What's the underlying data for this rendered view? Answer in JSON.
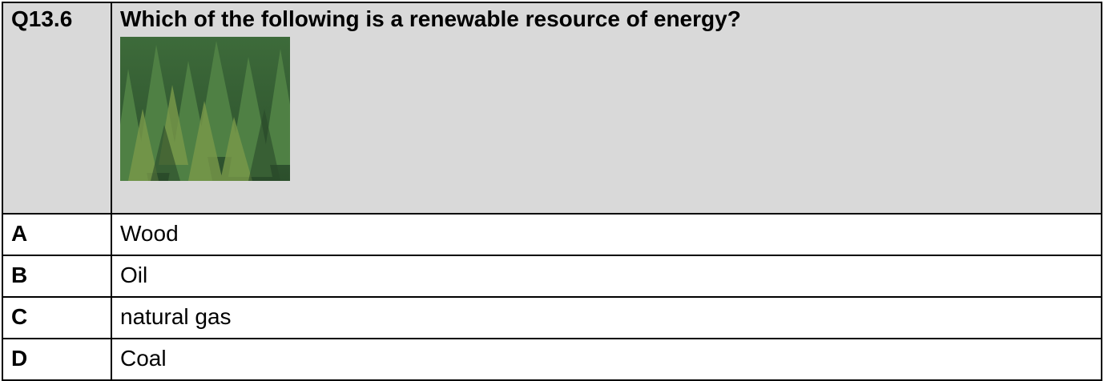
{
  "question": {
    "number": "Q13.6",
    "text": "Which of the following is a renewable resource of energy?"
  },
  "options": [
    {
      "letter": "A",
      "text": "Wood"
    },
    {
      "letter": "B",
      "text": "Oil"
    },
    {
      "letter": "C",
      "text": "natural gas"
    },
    {
      "letter": "D",
      "text": "Coal"
    }
  ]
}
